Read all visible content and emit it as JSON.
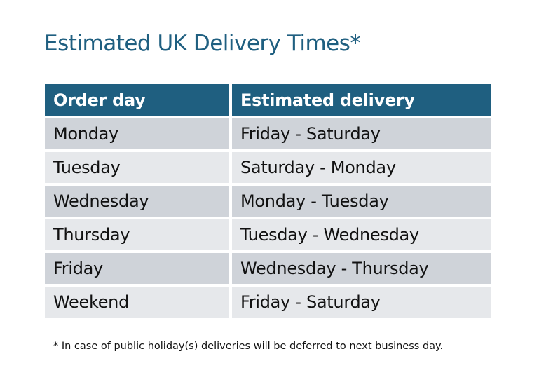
{
  "title": "Estimated UK Delivery Times*",
  "table": {
    "headers": [
      "Order day",
      "Estimated delivery"
    ],
    "rows": [
      [
        "Monday",
        "Friday - Saturday"
      ],
      [
        "Tuesday",
        "Saturday - Monday"
      ],
      [
        "Wednesday",
        "Monday - Tuesday"
      ],
      [
        "Thursday",
        "Tuesday - Wednesday"
      ],
      [
        "Friday",
        "Wednesday - Thursday"
      ],
      [
        "Weekend",
        "Friday - Saturday"
      ]
    ]
  },
  "footnote": "* In case of public holiday(s) deliveries will be deferred to next business day.",
  "colors": {
    "header": "#1f5f80",
    "row_dark": "#cfd3d9",
    "row_light": "#e6e8eb"
  }
}
